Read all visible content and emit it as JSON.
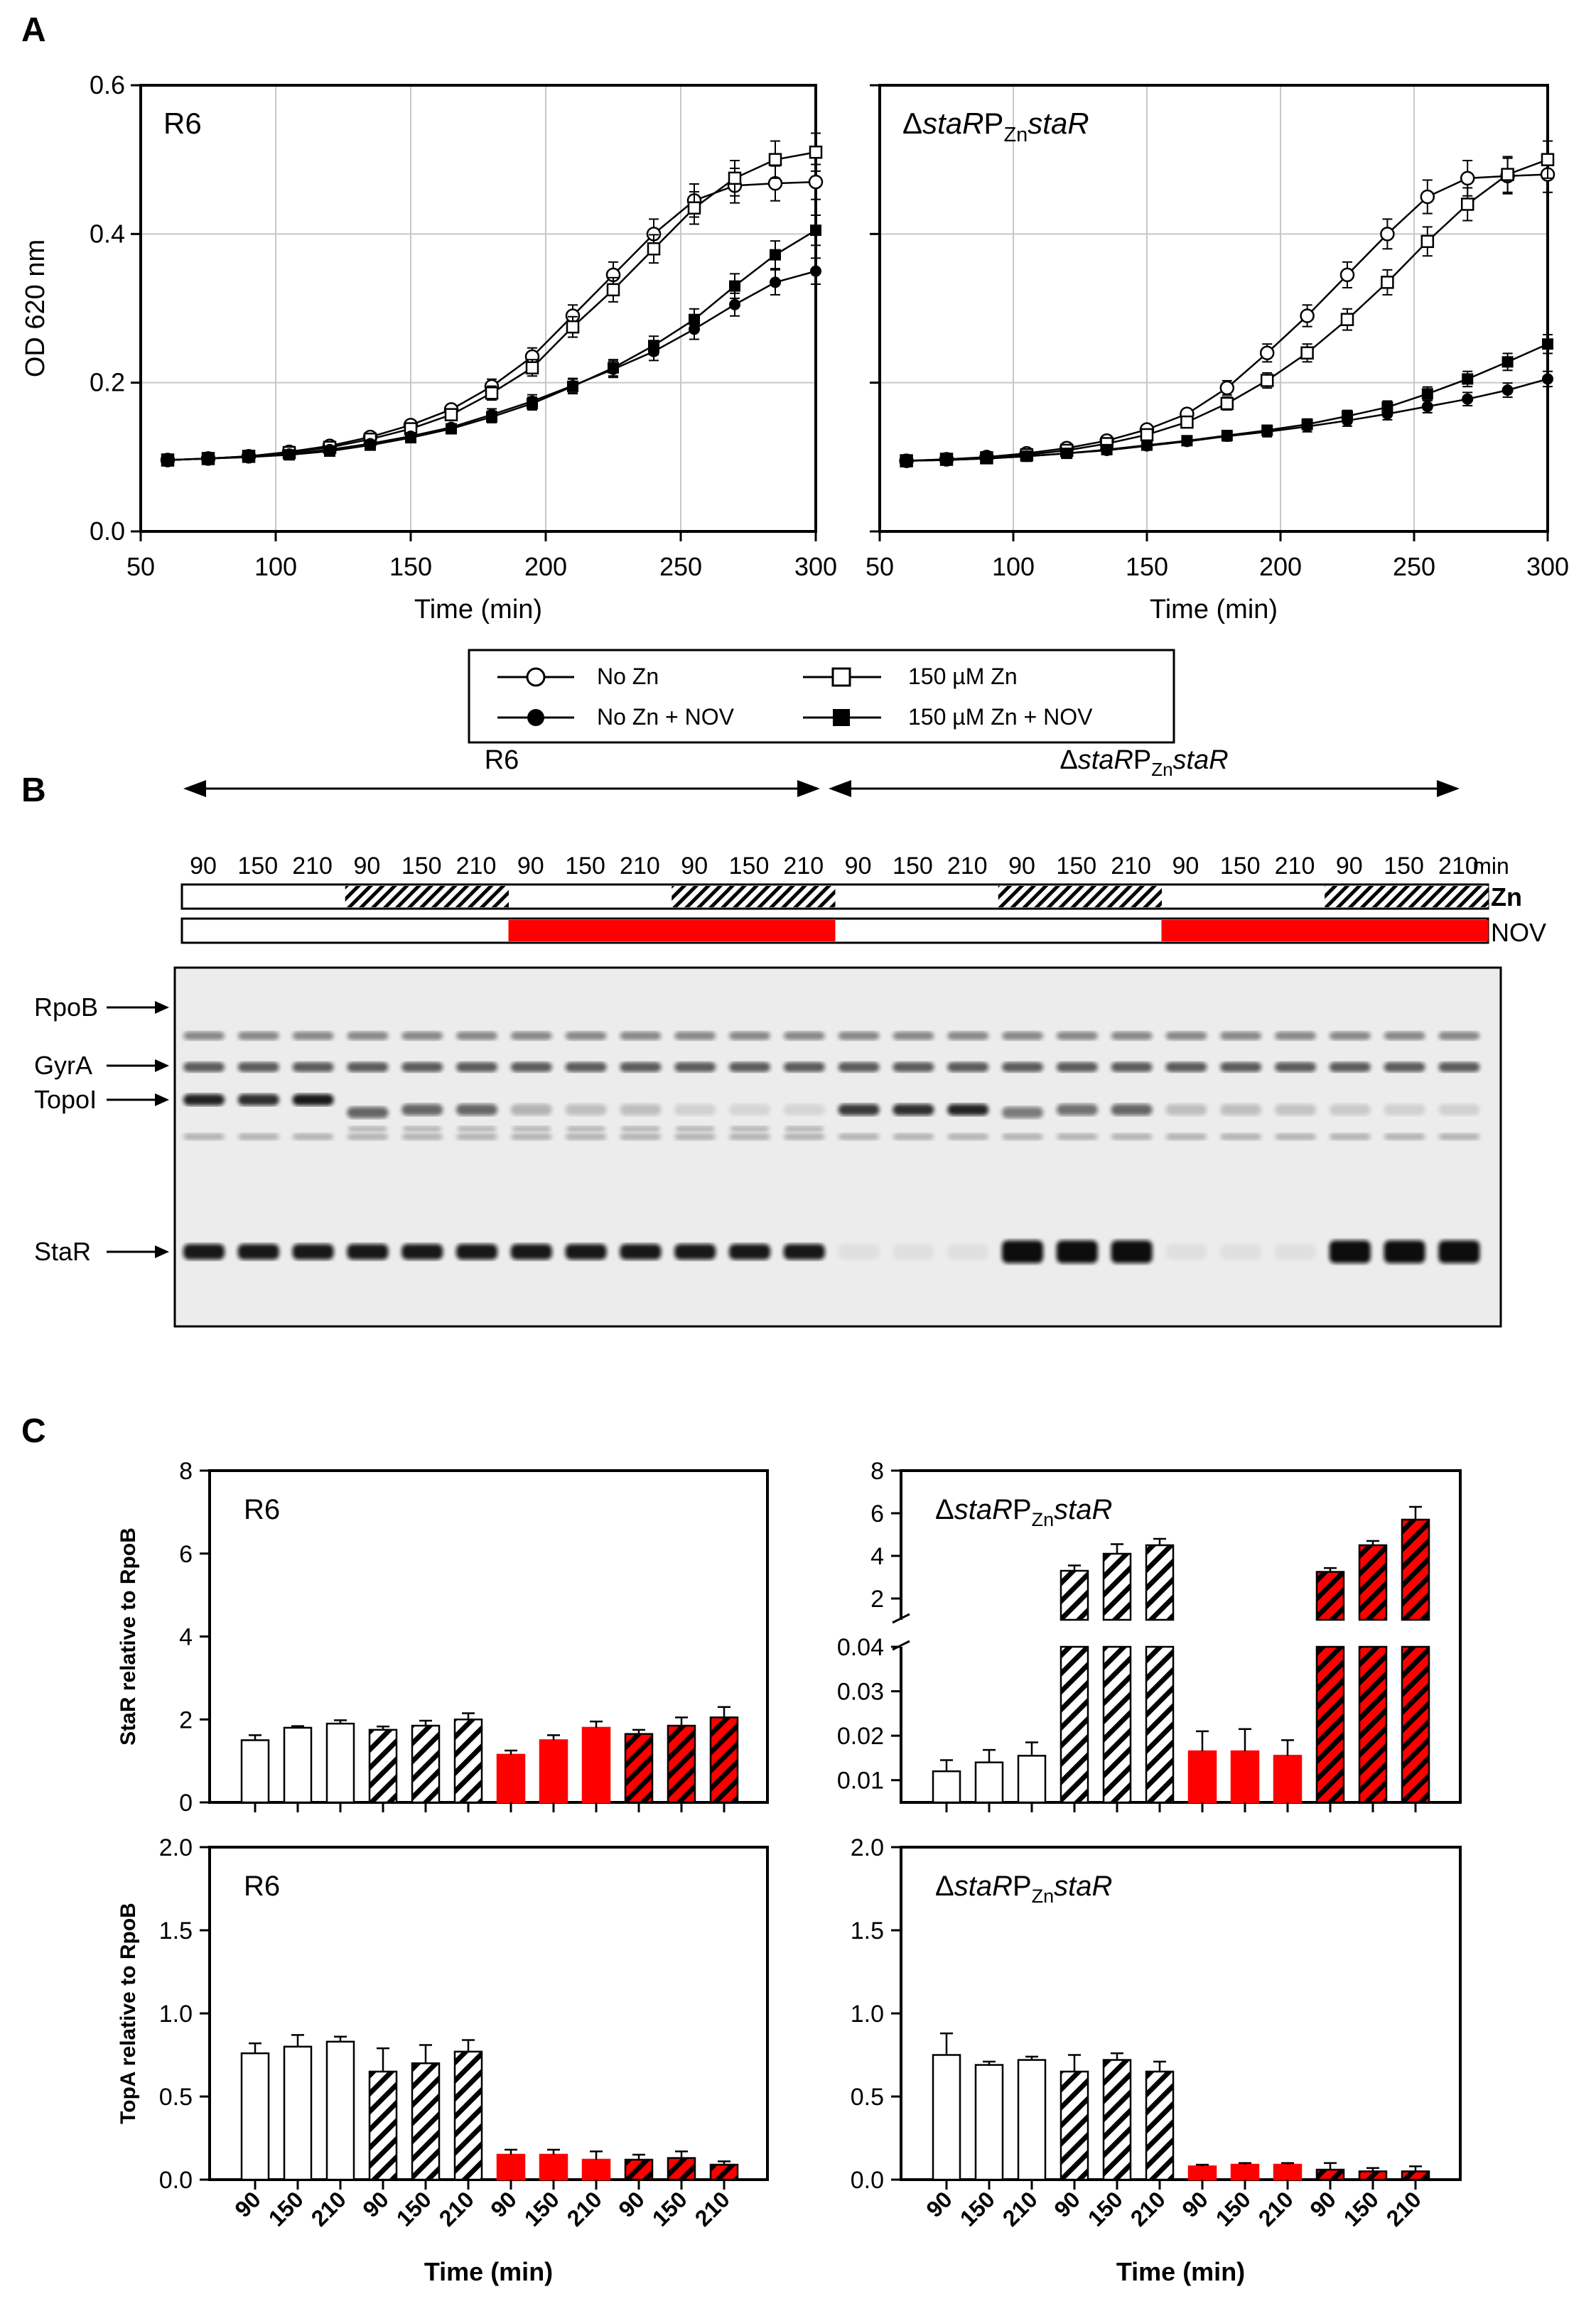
{
  "figure": {
    "panel_labels": [
      "A",
      "B",
      "C"
    ]
  },
  "legend": [
    {
      "label": "No Zn",
      "marker": "open-circle"
    },
    {
      "label": "150 µM Zn",
      "marker": "open-square"
    },
    {
      "label": "No Zn + NOV",
      "marker": "filled-circle"
    },
    {
      "label": "150 µM Zn + NOV",
      "marker": "filled-square"
    }
  ],
  "panel_b": {
    "strain_left": "R6",
    "strain_right_parts": [
      "Δ",
      "staR",
      "P",
      "Zn",
      "staR"
    ],
    "time_points": [
      "90",
      "150",
      "210",
      "90",
      "150",
      "210",
      "90",
      "150",
      "210",
      "90",
      "150",
      "210",
      "90",
      "150",
      "210",
      "90",
      "150",
      "210",
      "90",
      "150",
      "210",
      "90",
      "150",
      "210"
    ],
    "time_unit": "min",
    "zn_row_label": "Zn",
    "nov_row_label": "NOV",
    "zn_pattern": [
      0,
      0,
      0,
      1,
      1,
      1,
      0,
      0,
      0,
      1,
      1,
      1,
      0,
      0,
      0,
      1,
      1,
      1,
      0,
      0,
      0,
      1,
      1,
      1
    ],
    "nov_pattern": [
      0,
      0,
      0,
      0,
      0,
      0,
      1,
      1,
      1,
      1,
      1,
      1,
      0,
      0,
      0,
      0,
      0,
      0,
      1,
      1,
      1,
      1,
      1,
      1
    ],
    "blot_labels": [
      "RpoB",
      "GyrA",
      "TopoI",
      "StaR"
    ],
    "nov_color": "#ff0000"
  },
  "colors": {
    "nov": "#ff0000",
    "hatch": "#000000",
    "open": "#ffffff"
  },
  "chart_data": [
    {
      "type": "line",
      "panel": "A-left",
      "strain_label": "R6",
      "xlabel": "Time (min)",
      "ylabel": "OD 620 nm",
      "xlim": [
        50,
        300
      ],
      "ylim": [
        0,
        0.6
      ],
      "xticks": [
        "50",
        "100",
        "150",
        "200",
        "250",
        "300"
      ],
      "yticks": [
        "0.0",
        "0.2",
        "0.4",
        "0.6"
      ],
      "grid": true,
      "x": [
        60,
        75,
        90,
        105,
        120,
        135,
        150,
        165,
        180,
        195,
        210,
        225,
        240,
        255,
        270,
        285,
        300
      ],
      "series": [
        {
          "name": "No Zn",
          "marker": "open-circle",
          "values": [
            0.096,
            0.098,
            0.101,
            0.107,
            0.115,
            0.127,
            0.143,
            0.164,
            0.195,
            0.235,
            0.29,
            0.345,
            0.4,
            0.445,
            0.465,
            0.468,
            0.47
          ]
        },
        {
          "name": "150 µM Zn",
          "marker": "open-square",
          "values": [
            0.096,
            0.098,
            0.101,
            0.106,
            0.113,
            0.124,
            0.138,
            0.157,
            0.186,
            0.22,
            0.275,
            0.325,
            0.38,
            0.435,
            0.475,
            0.5,
            0.51
          ]
        },
        {
          "name": "No Zn + NOV",
          "marker": "filled-circle",
          "values": [
            0.096,
            0.098,
            0.1,
            0.104,
            0.11,
            0.118,
            0.128,
            0.14,
            0.157,
            0.175,
            0.196,
            0.218,
            0.242,
            0.272,
            0.305,
            0.335,
            0.35
          ]
        },
        {
          "name": "150 µM Zn + NOV",
          "marker": "filled-square",
          "values": [
            0.096,
            0.098,
            0.1,
            0.103,
            0.108,
            0.116,
            0.126,
            0.138,
            0.154,
            0.172,
            0.195,
            0.22,
            0.25,
            0.285,
            0.33,
            0.372,
            0.405
          ]
        }
      ]
    },
    {
      "type": "line",
      "panel": "A-right",
      "strain_label_parts": [
        "Δ",
        "staR",
        "P",
        "Zn",
        "staR"
      ],
      "xlabel": "Time (min)",
      "xlim": [
        50,
        300
      ],
      "ylim": [
        0,
        0.6
      ],
      "xticks": [
        "50",
        "100",
        "150",
        "200",
        "250",
        "300"
      ],
      "grid": true,
      "x": [
        60,
        75,
        90,
        105,
        120,
        135,
        150,
        165,
        180,
        195,
        210,
        225,
        240,
        255,
        270,
        285,
        300
      ],
      "series": [
        {
          "name": "No Zn",
          "marker": "open-circle",
          "values": [
            0.095,
            0.097,
            0.1,
            0.105,
            0.112,
            0.122,
            0.137,
            0.158,
            0.193,
            0.24,
            0.29,
            0.345,
            0.4,
            0.45,
            0.475,
            0.478,
            0.48
          ]
        },
        {
          "name": "150 µM Zn",
          "marker": "open-square",
          "values": [
            0.095,
            0.097,
            0.099,
            0.103,
            0.109,
            0.118,
            0.13,
            0.147,
            0.172,
            0.203,
            0.24,
            0.285,
            0.335,
            0.39,
            0.44,
            0.48,
            0.5
          ]
        },
        {
          "name": "No Zn + NOV",
          "marker": "filled-circle",
          "values": [
            0.095,
            0.096,
            0.098,
            0.101,
            0.105,
            0.109,
            0.115,
            0.121,
            0.128,
            0.134,
            0.141,
            0.149,
            0.158,
            0.168,
            0.178,
            0.19,
            0.205
          ]
        },
        {
          "name": "150 µM Zn + NOV",
          "marker": "filled-square",
          "values": [
            0.095,
            0.096,
            0.098,
            0.101,
            0.105,
            0.11,
            0.116,
            0.122,
            0.129,
            0.136,
            0.144,
            0.155,
            0.167,
            0.185,
            0.205,
            0.228,
            0.252
          ]
        }
      ]
    },
    {
      "type": "bar",
      "panel": "C-top-left",
      "strain_label": "R6",
      "ylabel": "StaR relative to RpoB",
      "ylim": [
        0,
        8
      ],
      "yticks": [
        "0",
        "2",
        "4",
        "6",
        "8"
      ],
      "categories": [
        "90",
        "150",
        "210",
        "90",
        "150",
        "210",
        "90",
        "150",
        "210",
        "90",
        "150",
        "210"
      ],
      "values": [
        1.5,
        1.8,
        1.9,
        1.75,
        1.85,
        2.0,
        1.15,
        1.5,
        1.8,
        1.65,
        1.85,
        2.05
      ],
      "errors": [
        0.12,
        0.04,
        0.08,
        0.08,
        0.12,
        0.15,
        0.1,
        0.12,
        0.15,
        0.1,
        0.2,
        0.25
      ],
      "fills": [
        "open",
        "open",
        "open",
        "hatch",
        "hatch",
        "hatch",
        "red",
        "red",
        "red",
        "redhatch",
        "redhatch",
        "redhatch"
      ]
    },
    {
      "type": "bar",
      "panel": "C-top-right",
      "strain_label_parts": [
        "Δ",
        "staR",
        "P",
        "Zn",
        "staR"
      ],
      "ylim_lower": [
        0.005,
        0.04
      ],
      "ylim_upper": [
        1,
        8
      ],
      "yticks_lower": [
        "0.01",
        "0.02",
        "0.03",
        "0.04"
      ],
      "yticks_upper": [
        "2",
        "4",
        "6",
        "8"
      ],
      "categories": [
        "90",
        "150",
        "210",
        "90",
        "150",
        "210",
        "90",
        "150",
        "210",
        "90",
        "150",
        "210"
      ],
      "values": [
        0.012,
        0.014,
        0.0155,
        3.3,
        4.1,
        4.5,
        0.0165,
        0.0165,
        0.0155,
        3.25,
        4.5,
        5.7
      ],
      "errors": [
        0.0025,
        0.0028,
        0.003,
        0.25,
        0.45,
        0.3,
        0.0045,
        0.005,
        0.0035,
        0.18,
        0.2,
        0.6
      ],
      "fills": [
        "open",
        "open",
        "open",
        "hatch",
        "hatch",
        "hatch",
        "red",
        "red",
        "red",
        "redhatch",
        "redhatch",
        "redhatch"
      ]
    },
    {
      "type": "bar",
      "panel": "C-bottom-left",
      "strain_label": "R6",
      "ylabel": "TopA relative to RpoB",
      "xlabel": "Time (min)",
      "ylim": [
        0,
        2.0
      ],
      "yticks": [
        "0.0",
        "0.5",
        "1.0",
        "1.5",
        "2.0"
      ],
      "categories": [
        "90",
        "150",
        "210",
        "90",
        "150",
        "210",
        "90",
        "150",
        "210",
        "90",
        "150",
        "210"
      ],
      "values": [
        0.76,
        0.8,
        0.83,
        0.65,
        0.7,
        0.77,
        0.15,
        0.15,
        0.12,
        0.12,
        0.13,
        0.09
      ],
      "errors": [
        0.06,
        0.07,
        0.03,
        0.14,
        0.11,
        0.07,
        0.03,
        0.03,
        0.05,
        0.03,
        0.04,
        0.02
      ],
      "fills": [
        "open",
        "open",
        "open",
        "hatch",
        "hatch",
        "hatch",
        "red",
        "red",
        "red",
        "redhatch",
        "redhatch",
        "redhatch"
      ]
    },
    {
      "type": "bar",
      "panel": "C-bottom-right",
      "strain_label_parts": [
        "Δ",
        "staR",
        "P",
        "Zn",
        "staR"
      ],
      "xlabel": "Time (min)",
      "ylim": [
        0,
        2.0
      ],
      "yticks": [
        "0.0",
        "0.5",
        "1.0",
        "1.5",
        "2.0"
      ],
      "categories": [
        "90",
        "150",
        "210",
        "90",
        "150",
        "210",
        "90",
        "150",
        "210",
        "90",
        "150",
        "210"
      ],
      "values": [
        0.75,
        0.69,
        0.72,
        0.65,
        0.72,
        0.65,
        0.08,
        0.09,
        0.09,
        0.06,
        0.05,
        0.05
      ],
      "errors": [
        0.13,
        0.02,
        0.02,
        0.1,
        0.04,
        0.06,
        0.01,
        0.01,
        0.01,
        0.04,
        0.02,
        0.03
      ],
      "fills": [
        "open",
        "open",
        "open",
        "hatch",
        "hatch",
        "hatch",
        "red",
        "red",
        "red",
        "redhatch",
        "redhatch",
        "redhatch"
      ]
    }
  ]
}
